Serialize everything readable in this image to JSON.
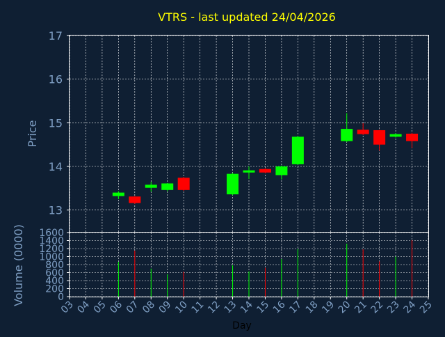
{
  "chart_data": {
    "type": "candlestick",
    "title": "VTRS - last updated 24/04/2026",
    "xlabel": "Day",
    "price_panel": {
      "ylabel": "Price",
      "ylim": [
        12.5,
        17
      ],
      "yticks": [
        "13",
        "14",
        "15",
        "16",
        "17"
      ],
      "grid": true
    },
    "volume_panel": {
      "ylabel": "Volume (0000)",
      "ylim": [
        0,
        1600
      ],
      "yticks": [
        "0",
        "200",
        "400",
        "600",
        "800",
        "1000",
        "1200",
        "1400",
        "1600"
      ],
      "grid": true
    },
    "x_ticks": [
      "03",
      "04",
      "05",
      "06",
      "07",
      "08",
      "09",
      "10",
      "11",
      "12",
      "13",
      "14",
      "15",
      "16",
      "17",
      "18",
      "19",
      "20",
      "21",
      "22",
      "23",
      "24",
      "25"
    ],
    "xlim": [
      3,
      25
    ],
    "candles": [
      {
        "day": 6,
        "open": 13.32,
        "close": 13.4,
        "high": 13.43,
        "low": 13.25,
        "volume": 870
      },
      {
        "day": 7,
        "open": 13.31,
        "close": 13.16,
        "high": 13.32,
        "low": 13.14,
        "volume": 1150
      },
      {
        "day": 8,
        "open": 13.51,
        "close": 13.58,
        "high": 13.65,
        "low": 13.42,
        "volume": 700
      },
      {
        "day": 9,
        "open": 13.46,
        "close": 13.61,
        "high": 13.62,
        "low": 13.43,
        "volume": 560
      },
      {
        "day": 10,
        "open": 13.74,
        "close": 13.46,
        "high": 13.76,
        "low": 13.44,
        "volume": 620
      },
      {
        "day": 13,
        "open": 13.36,
        "close": 13.83,
        "high": 13.85,
        "low": 13.34,
        "volume": 780
      },
      {
        "day": 14,
        "open": 13.86,
        "close": 13.91,
        "high": 14.0,
        "low": 13.71,
        "volume": 630
      },
      {
        "day": 15,
        "open": 13.94,
        "close": 13.86,
        "high": 13.96,
        "low": 13.84,
        "volume": 720
      },
      {
        "day": 16,
        "open": 13.8,
        "close": 14.0,
        "high": 14.02,
        "low": 13.7,
        "volume": 940
      },
      {
        "day": 17,
        "open": 14.05,
        "close": 14.68,
        "high": 14.7,
        "low": 14.03,
        "volume": 1190
      },
      {
        "day": 20,
        "open": 14.58,
        "close": 14.86,
        "high": 15.22,
        "low": 14.56,
        "volume": 1320
      },
      {
        "day": 21,
        "open": 14.84,
        "close": 14.74,
        "high": 14.99,
        "low": 14.72,
        "volume": 1180
      },
      {
        "day": 22,
        "open": 14.83,
        "close": 14.5,
        "high": 14.84,
        "low": 14.36,
        "volume": 880
      },
      {
        "day": 23,
        "open": 14.68,
        "close": 14.74,
        "high": 14.76,
        "low": 14.66,
        "volume": 1000
      },
      {
        "day": 24,
        "open": 14.75,
        "close": 14.58,
        "high": 14.77,
        "low": 14.42,
        "volume": 1410
      }
    ],
    "colors": {
      "background": "#0f1f33",
      "axes_face": "#0f1f33",
      "grid": "#ffffff",
      "axis_text": "#7f9fc4",
      "title": "#ffff00",
      "xlabel": "#000000",
      "up": "#00ff00",
      "down": "#ff0000"
    }
  }
}
